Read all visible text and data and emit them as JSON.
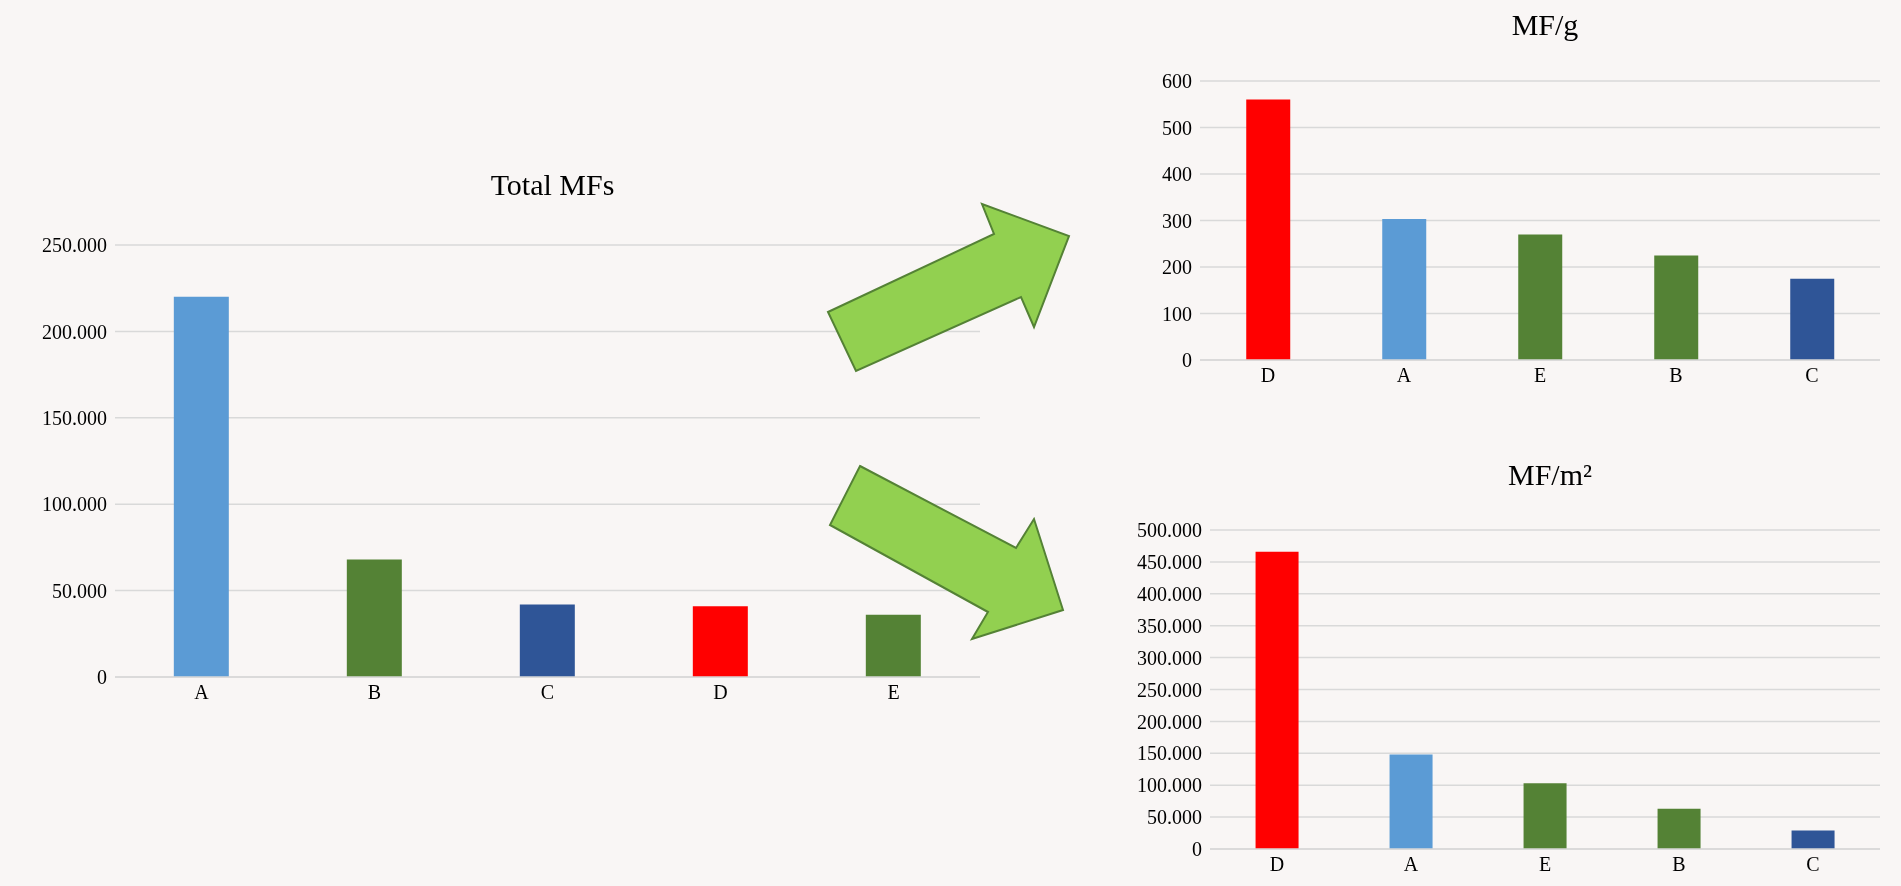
{
  "chart_data": [
    {
      "type": "bar",
      "title": "Total MFs",
      "categories": [
        "A",
        "B",
        "C",
        "D",
        "E"
      ],
      "values": [
        220000,
        68000,
        42000,
        41000,
        36000
      ],
      "colors": [
        "#5b9bd5",
        "#548235",
        "#2f5597",
        "#ff0000",
        "#548235"
      ],
      "ylim": [
        0,
        250000
      ],
      "yticks": [
        0,
        {
          "value": 50000,
          "label": "50.000"
        },
        {
          "value": 100000,
          "label": "100.000"
        },
        {
          "value": 150000,
          "label": "150.000"
        },
        {
          "value": 200000,
          "label": "200.000"
        },
        {
          "value": 250000,
          "label": "250.000"
        }
      ],
      "grid": "y"
    },
    {
      "type": "bar",
      "title": "MF/g",
      "categories": [
        "D",
        "A",
        "E",
        "B",
        "C"
      ],
      "values": [
        560,
        303,
        270,
        225,
        175
      ],
      "colors": [
        "#ff0000",
        "#5b9bd5",
        "#548235",
        "#548235",
        "#2f5597"
      ],
      "ylim": [
        0,
        600
      ],
      "yticks": [
        0,
        100,
        200,
        300,
        400,
        500,
        600
      ],
      "grid": "y"
    },
    {
      "type": "bar",
      "title": "MF/m²",
      "categories": [
        "D",
        "A",
        "E",
        "B",
        "C"
      ],
      "values": [
        466000,
        148000,
        103000,
        63000,
        29000
      ],
      "colors": [
        "#ff0000",
        "#5b9bd5",
        "#548235",
        "#548235",
        "#2f5597"
      ],
      "ylim": [
        0,
        500000
      ],
      "yticks": [
        0,
        {
          "value": 50000,
          "label": "50.000"
        },
        {
          "value": 100000,
          "label": "100.000"
        },
        {
          "value": 150000,
          "label": "150.000"
        },
        {
          "value": 200000,
          "label": "200.000"
        },
        {
          "value": 250000,
          "label": "250.000"
        },
        {
          "value": 300000,
          "label": "300.000"
        },
        {
          "value": 350000,
          "label": "350.000"
        },
        {
          "value": 400000,
          "label": "400.000"
        },
        {
          "value": 450000,
          "label": "450.000"
        },
        {
          "value": 500000,
          "label": "500.000"
        }
      ],
      "grid": "y"
    }
  ]
}
